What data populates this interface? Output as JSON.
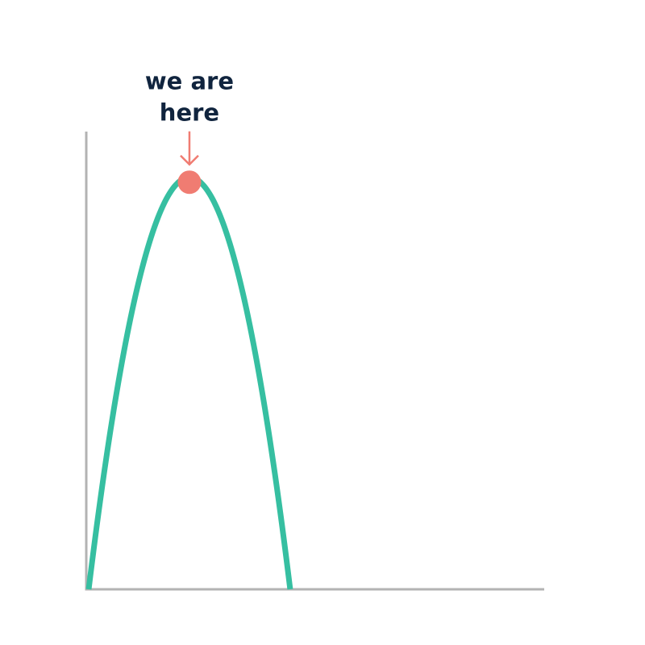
{
  "chart_data": {
    "type": "line",
    "title": "",
    "xlabel": "",
    "ylabel": "",
    "xlim": [
      0,
      10
    ],
    "ylim": [
      0,
      1
    ],
    "grid": false,
    "legend": "none",
    "series": [
      {
        "shape": "parabola",
        "x_start": 0,
        "x_peak": 2.2,
        "x_end": 4.4,
        "y_peak": 0.9,
        "color": "#36BFA1"
      }
    ],
    "marker": {
      "x": 2.2,
      "y": 0.9,
      "color": "#F07C72"
    },
    "annotation": {
      "lines": [
        "we are",
        "here"
      ],
      "text_color": "#10243E",
      "arrow_color": "#F07C72"
    },
    "axis_color": "#B3B3B3"
  }
}
